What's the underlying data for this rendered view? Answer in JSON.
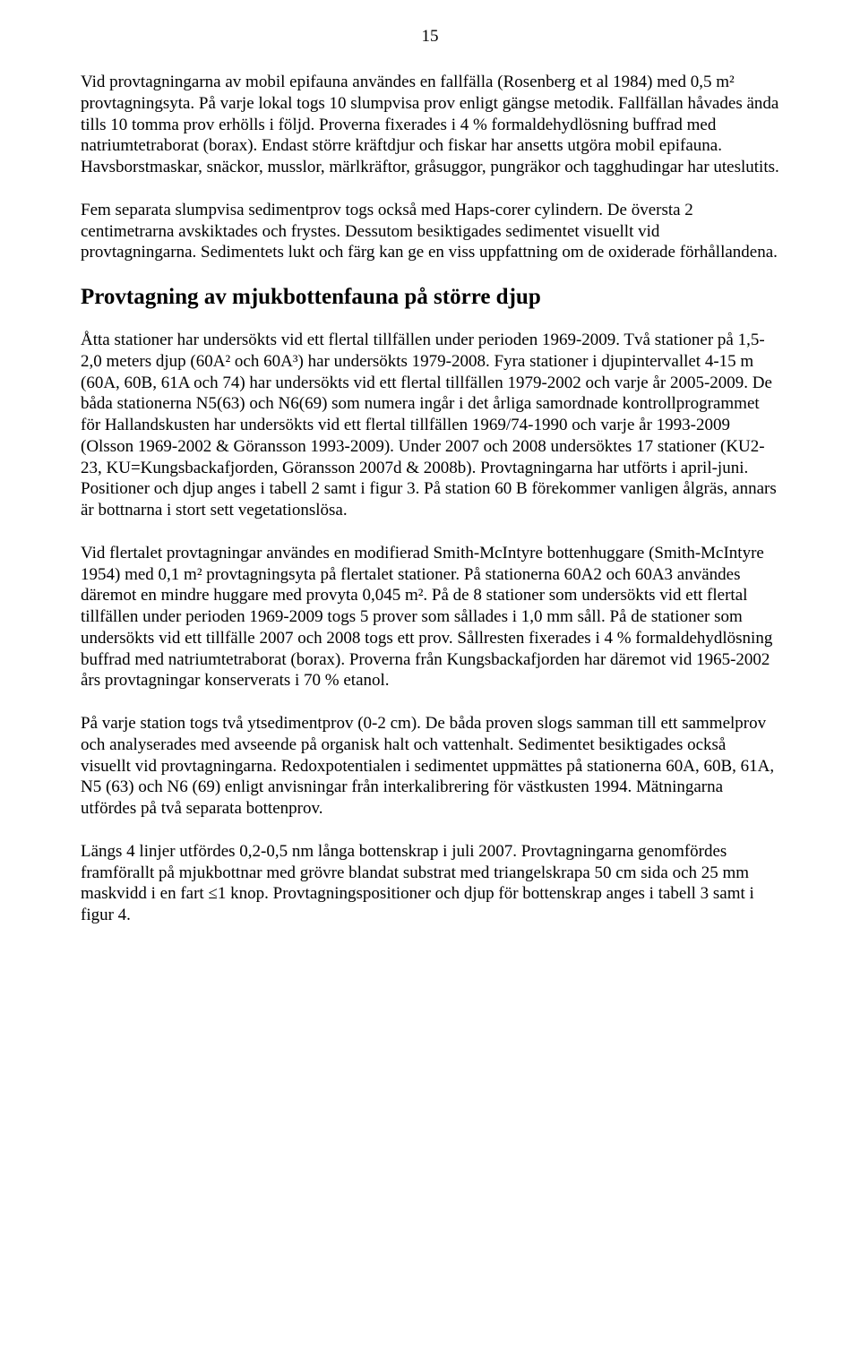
{
  "pageNumber": "15",
  "paragraphs": {
    "p1": "Vid provtagningarna av mobil epifauna användes en fallfälla (Rosenberg et al 1984) med 0,5 m² provtagningsyta. På varje lokal togs 10 slumpvisa prov enligt gängse metodik. Fallfällan håvades ända tills 10 tomma prov erhölls i följd. Proverna fixerades i 4 % formaldehydlösning buffrad med natriumtetraborat (borax). Endast större kräftdjur och fiskar har ansetts utgöra mobil epifauna. Havsborstmaskar, snäckor, musslor, märlkräftor, gråsuggor, pungräkor och tagghudingar har uteslutits.",
    "p2": "Fem separata slumpvisa sedimentprov togs också med Haps-corer cylindern. De översta 2 centimetrarna avskiktades och frystes. Dessutom besiktigades sedimentet visuellt vid provtagningarna. Sedimentets lukt och färg kan ge en viss uppfattning om de oxiderade förhållandena.",
    "h1": "Provtagning av mjukbottenfauna på större djup",
    "p3": "Åtta stationer har undersökts vid ett flertal tillfällen under perioden 1969-2009. Två stationer på 1,5-2,0 meters djup (60A² och 60A³) har undersökts 1979-2008. Fyra stationer i djupintervallet 4-15 m (60A, 60B, 61A och 74) har undersökts vid ett flertal tillfällen 1979-2002 och varje år 2005-2009. De båda stationerna N5(63) och N6(69) som numera ingår i det årliga samordnade kontrollprogrammet för Hallandskusten har undersökts vid ett flertal tillfällen 1969/74-1990 och varje år 1993-2009 (Olsson 1969-2002 & Göransson 1993-2009). Under 2007 och 2008 undersöktes 17 stationer (KU2-23, KU=Kungsbackafjorden, Göransson 2007d & 2008b). Provtagningarna har utförts i april-juni. Positioner och djup anges i tabell 2 samt i figur 3. På station 60 B förekommer vanligen ålgräs, annars är bottnarna i stort sett vegetationslösa.",
    "p4": "Vid flertalet provtagningar användes en modifierad Smith-McIntyre bottenhuggare (Smith-McIntyre 1954) med 0,1 m² provtagningsyta på flertalet stationer. På stationerna 60A2 och 60A3 användes däremot en mindre huggare med provyta 0,045 m². På de 8 stationer som undersökts vid ett flertal tillfällen under perioden 1969-2009 togs 5 prover som sållades i 1,0 mm såll. På de stationer som undersökts vid ett tillfälle 2007 och 2008 togs ett prov. Sållresten fixerades i 4 % formaldehydlösning buffrad med natriumtetraborat (borax). Proverna från Kungsbackafjorden har däremot vid 1965-2002 års provtagningar konserverats i 70 % etanol.",
    "p5": "På varje station togs två ytsedimentprov (0-2 cm). De båda proven slogs samman till ett sammelprov och analyserades med avseende på organisk halt och vattenhalt. Sedimentet besiktigades också visuellt vid provtagningarna. Redoxpotentialen i sedimentet uppmättes på stationerna 60A, 60B, 61A, N5 (63) och N6 (69) enligt anvisningar från interkalibrering för västkusten 1994. Mätningarna utfördes på två separata bottenprov.",
    "p6": "Längs 4 linjer utfördes 0,2-0,5 nm långa bottenskrap i juli 2007. Provtagningarna genomfördes framförallt på mjukbottnar med grövre blandat substrat med triangelskrapa 50 cm sida och 25 mm maskvidd i en fart ≤1 knop. Provtagningspositioner och djup för bottenskrap anges i tabell 3 samt i figur 4."
  }
}
